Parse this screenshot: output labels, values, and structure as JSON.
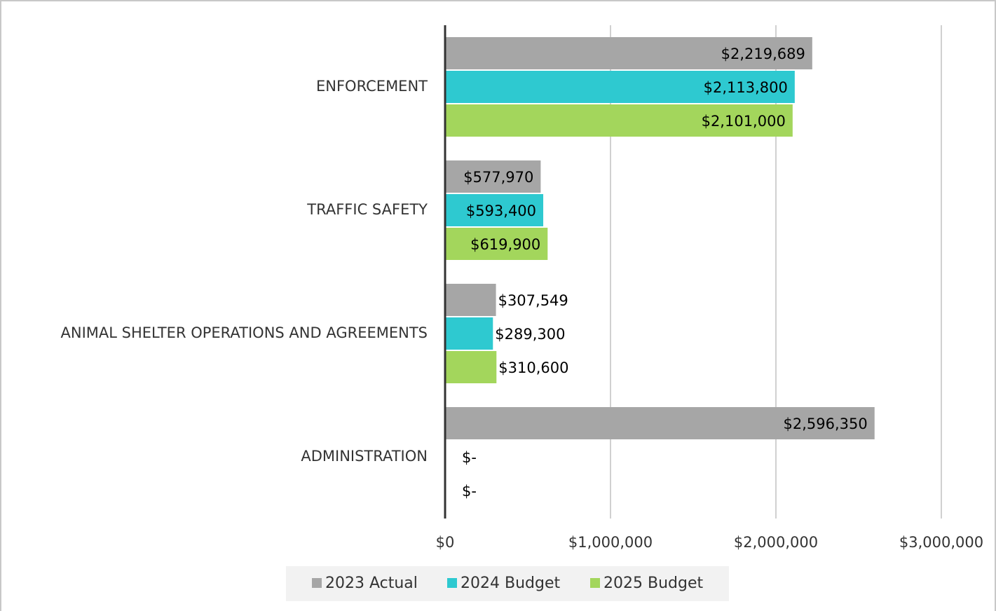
{
  "chart_data": {
    "type": "bar",
    "orientation": "horizontal",
    "categories": [
      "ENFORCEMENT",
      "TRAFFIC SAFETY",
      "ANIMAL SHELTER OPERATIONS AND AGREEMENTS",
      "ADMINISTRATION"
    ],
    "series": [
      {
        "name": "2023 Actual",
        "color": "#a6a6a6",
        "values": [
          2219689,
          577970,
          307549,
          2596350
        ],
        "value_labels": [
          "$2,219,689",
          "$577,970",
          "$307,549",
          "$2,596,350"
        ]
      },
      {
        "name": "2024 Budget",
        "color": "#2ec9d0",
        "values": [
          2113800,
          593400,
          289300,
          0
        ],
        "value_labels": [
          "$2,113,800",
          "$593,400",
          "$289,300",
          "$-"
        ]
      },
      {
        "name": "2025 Budget",
        "color": "#a3d65c",
        "values": [
          2101000,
          619900,
          310600,
          0
        ],
        "value_labels": [
          "$2,101,000",
          "$619,900",
          "$310,600",
          "$-"
        ]
      }
    ],
    "xlim": [
      0,
      3000000
    ],
    "xticks": [
      {
        "value": 0,
        "label": "$0"
      },
      {
        "value": 1000000,
        "label": "$1,000,000"
      },
      {
        "value": 2000000,
        "label": "$2,000,000"
      },
      {
        "value": 3000000,
        "label": "$3,000,000"
      }
    ],
    "grid": true,
    "legend": "bottom"
  }
}
